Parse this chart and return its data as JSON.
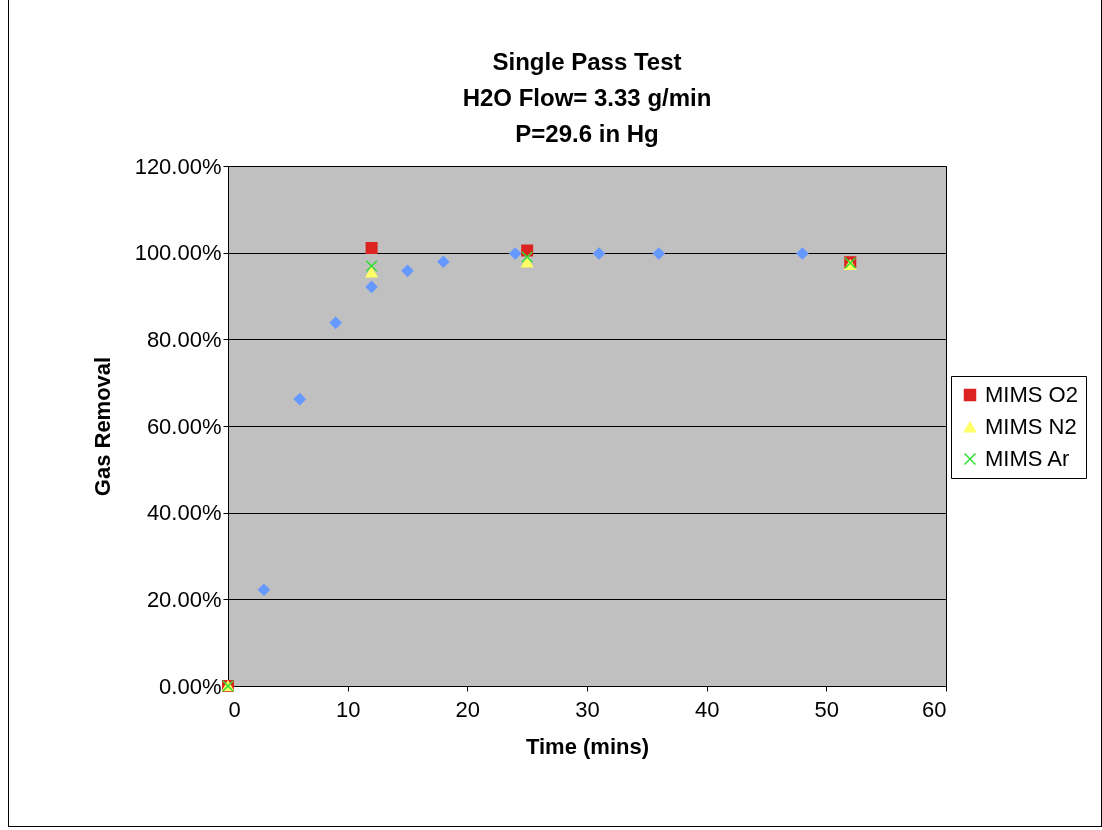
{
  "chart_data": {
    "type": "scatter",
    "title": [
      "Single Pass Test",
      "H2O Flow= 3.33 g/min",
      "P=29.6 in Hg"
    ],
    "xlabel": "Time (mins)",
    "ylabel": "Gas Removal",
    "xlim": [
      0,
      60
    ],
    "xticks": [
      0,
      10,
      20,
      30,
      40,
      50,
      60
    ],
    "ylim": [
      0,
      120
    ],
    "yticks": [
      {
        "value": 0,
        "label": "0.00%"
      },
      {
        "value": 20,
        "label": "20.00%"
      },
      {
        "value": 40,
        "label": "40.00%"
      },
      {
        "value": 60,
        "label": "60.00%"
      },
      {
        "value": 80,
        "label": "80.00%"
      },
      {
        "value": 100,
        "label": "100.00%"
      },
      {
        "value": 120,
        "label": "120.00%"
      }
    ],
    "grid": "y",
    "legend": "right",
    "series": [
      {
        "color": "#6699ff",
        "marker": "diamond",
        "x": [
          0,
          3,
          6,
          9,
          12,
          15,
          18,
          24,
          31,
          36,
          48
        ],
        "values": [
          0,
          22.2,
          66.2,
          83.8,
          92.1,
          95.8,
          97.9,
          99.8,
          99.8,
          99.8,
          99.8
        ]
      },
      {
        "name": "MIMS O2",
        "color": "#dd2222",
        "marker": "square",
        "x": [
          0,
          12,
          25,
          52
        ],
        "values": [
          0,
          101.1,
          100.5,
          97.8
        ]
      },
      {
        "name": "MIMS N2",
        "color": "#ffff66",
        "marker": "triangle",
        "x": [
          0,
          12,
          25,
          52
        ],
        "values": [
          0,
          95.5,
          97.8,
          97.2
        ]
      },
      {
        "name": "MIMS Ar",
        "color": "#33dd33",
        "marker": "cross",
        "x": [
          0,
          12,
          25,
          52
        ],
        "values": [
          0,
          96.9,
          99.0,
          97.6
        ]
      }
    ]
  }
}
